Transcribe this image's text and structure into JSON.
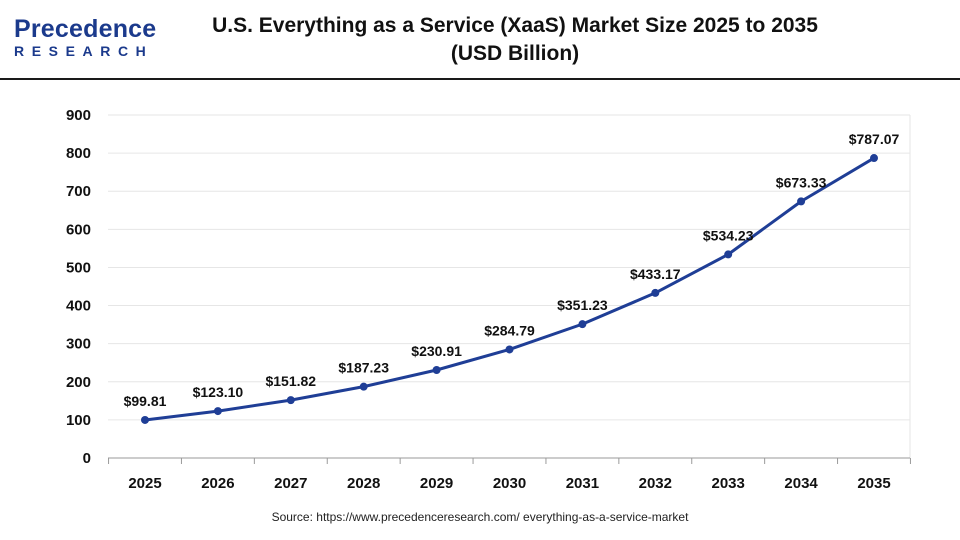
{
  "logo": {
    "line1": "Precedence",
    "line2": "RESEARCH"
  },
  "title_line1": "U.S. Everything as a Service (XaaS) Market Size 2025 to 2035",
  "title_line2": "(USD Billion)",
  "source": "Source: https://www.precedenceresearch.com/ everything-as-a-service-market",
  "colors": {
    "line": "#1f3e96",
    "grid": "#e6e6e6",
    "brand": "#1b3a8c"
  },
  "chart_data": {
    "type": "line",
    "title": "U.S. Everything as a Service (XaaS) Market Size 2025 to 2035 (USD Billion)",
    "xlabel": "",
    "ylabel": "",
    "categories": [
      "2025",
      "2026",
      "2027",
      "2028",
      "2029",
      "2030",
      "2031",
      "2032",
      "2033",
      "2034",
      "2035"
    ],
    "series": [
      {
        "values": [
          99.81,
          123.1,
          151.82,
          187.23,
          230.91,
          284.79,
          351.23,
          433.17,
          534.23,
          673.33,
          787.07
        ],
        "labels": [
          "$99.81",
          "$123.10",
          "$151.82",
          "$187.23",
          "$230.91",
          "$284.79",
          "$351.23",
          "$433.17",
          "$534.23",
          "$673.33",
          "$787.07"
        ]
      }
    ],
    "ylim": [
      0,
      900
    ],
    "yticks": [
      "0",
      "100",
      "200",
      "300",
      "400",
      "500",
      "600",
      "700",
      "800",
      "900"
    ],
    "grid": true,
    "legend": "none"
  }
}
